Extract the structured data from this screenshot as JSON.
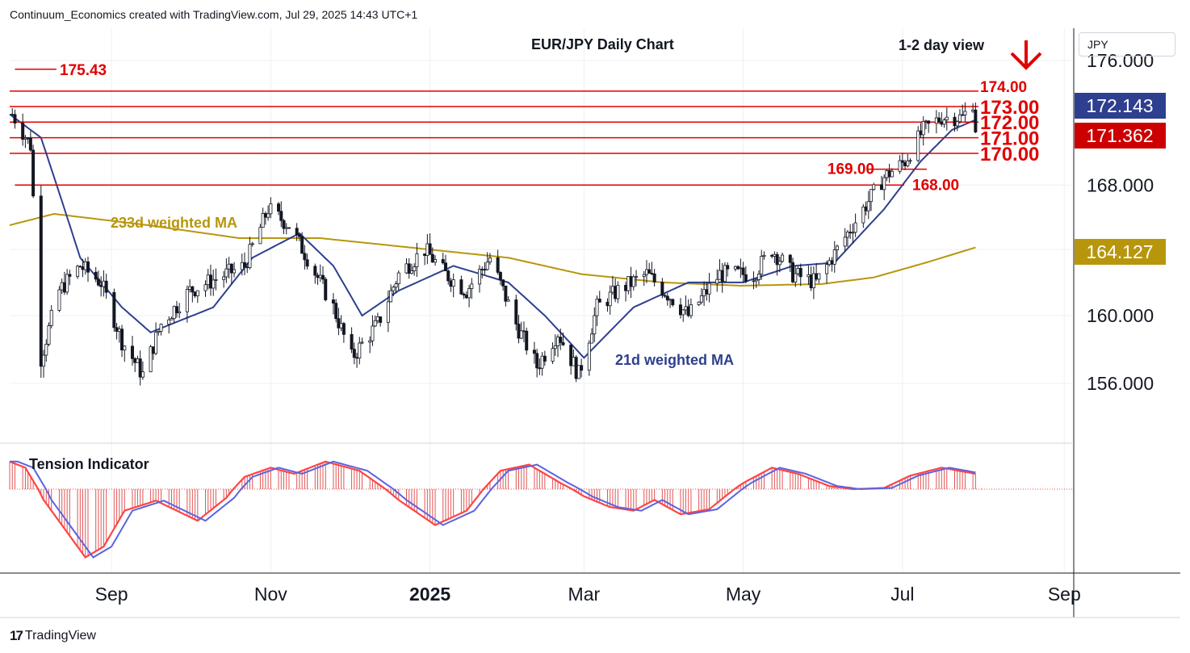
{
  "header": {
    "caption": "Continuum_Economics created with TradingView.com, Jul 29, 2025 14:43 UTC+1"
  },
  "footer": {
    "logo_icon": "tradingview-logo-icon",
    "logo_text": "TradingView"
  },
  "colors": {
    "level_lines": "#e00000",
    "ma_21": "#2e3f8f",
    "ma_233": "#b8960c",
    "candles": "#131722",
    "tension_fast": "#ff4444",
    "tension_slow": "#5b63e0",
    "badge_ma21": "#2e3f8f",
    "badge_last": "#cc0000",
    "badge_ma233": "#b8960c",
    "down_arrow": "#e00000"
  },
  "chart_data": {
    "type": "candlestick",
    "title": "EUR/JPY Daily Chart",
    "view_label": "1-2 day view",
    "direction_icon": "down-arrow-icon",
    "unit": "JPY",
    "y_ticks": [
      "176.000",
      "168.000",
      "160.000",
      "156.000"
    ],
    "y_tick_values": [
      176,
      168,
      160,
      156
    ],
    "x_ticks": [
      {
        "label": "Sep",
        "date": "2024-09-01",
        "bold": false
      },
      {
        "label": "Nov",
        "date": "2024-11-01",
        "bold": false
      },
      {
        "label": "2025",
        "date": "2025-01-01",
        "bold": true
      },
      {
        "label": "Mar",
        "date": "2025-03-01",
        "bold": false
      },
      {
        "label": "May",
        "date": "2025-05-01",
        "bold": false
      },
      {
        "label": "Jul",
        "date": "2025-07-01",
        "bold": false
      },
      {
        "label": "Sep",
        "date": "2025-09-01",
        "bold": false
      }
    ],
    "x_range": [
      "2024-07-24",
      "2025-09-04"
    ],
    "horizontal_levels": [
      {
        "value": 175.43,
        "label": "175.43",
        "start": "2024-07-26"
      },
      {
        "value": 174.0,
        "label": "174.00",
        "start": "2024-07-24"
      },
      {
        "value": 173.0,
        "label": "173.00",
        "start": "2024-07-24"
      },
      {
        "value": 172.0,
        "label": "172.00",
        "start": "2024-07-24"
      },
      {
        "value": 171.0,
        "label": "171.00",
        "start": "2024-07-24"
      },
      {
        "value": 170.0,
        "label": "170.00",
        "start": "2024-07-24"
      },
      {
        "value": 169.0,
        "label": "169.00",
        "start": "2025-06-18"
      },
      {
        "value": 168.0,
        "label": "168.00",
        "start": "2024-07-26"
      }
    ],
    "price_badges": [
      {
        "label": "172.143",
        "series": "21d weighted MA"
      },
      {
        "label": "171.362",
        "series": "last"
      },
      {
        "label": "164.127",
        "series": "233d weighted MA"
      }
    ],
    "series": [
      {
        "name": "21d weighted MA",
        "kind": "line",
        "label": "21d weighted MA"
      },
      {
        "name": "233d weighted MA",
        "kind": "line",
        "label": "233d weighted MA"
      }
    ],
    "close_anchors": [
      {
        "date": "2024-07-25",
        "close": 172.5
      },
      {
        "date": "2024-08-01",
        "close": 170.5
      },
      {
        "date": "2024-08-05",
        "close": 157.5
      },
      {
        "date": "2024-08-12",
        "close": 161.5
      },
      {
        "date": "2024-08-20",
        "close": 163.0
      },
      {
        "date": "2024-08-28",
        "close": 162.0
      },
      {
        "date": "2024-09-05",
        "close": 158.5
      },
      {
        "date": "2024-09-13",
        "close": 156.5
      },
      {
        "date": "2024-09-20",
        "close": 159.5
      },
      {
        "date": "2024-10-01",
        "close": 161.5
      },
      {
        "date": "2024-10-15",
        "close": 162.5
      },
      {
        "date": "2024-10-22",
        "close": 163.0
      },
      {
        "date": "2024-10-31",
        "close": 166.5
      },
      {
        "date": "2024-11-08",
        "close": 165.5
      },
      {
        "date": "2024-11-15",
        "close": 163.5
      },
      {
        "date": "2024-11-25",
        "close": 160.5
      },
      {
        "date": "2024-12-02",
        "close": 157.5
      },
      {
        "date": "2024-12-12",
        "close": 159.5
      },
      {
        "date": "2024-12-20",
        "close": 162.5
      },
      {
        "date": "2024-12-30",
        "close": 164.0
      },
      {
        "date": "2025-01-07",
        "close": 162.5
      },
      {
        "date": "2025-01-15",
        "close": 161.5
      },
      {
        "date": "2025-01-24",
        "close": 163.5
      },
      {
        "date": "2025-02-03",
        "close": 159.5
      },
      {
        "date": "2025-02-11",
        "close": 157.0
      },
      {
        "date": "2025-02-19",
        "close": 159.0
      },
      {
        "date": "2025-02-27",
        "close": 156.5
      },
      {
        "date": "2025-03-06",
        "close": 160.5
      },
      {
        "date": "2025-03-14",
        "close": 161.5
      },
      {
        "date": "2025-03-25",
        "close": 162.5
      },
      {
        "date": "2025-04-04",
        "close": 161.0
      },
      {
        "date": "2025-04-10",
        "close": 160.0
      },
      {
        "date": "2025-04-22",
        "close": 162.5
      },
      {
        "date": "2025-05-05",
        "close": 162.5
      },
      {
        "date": "2025-05-12",
        "close": 164.0
      },
      {
        "date": "2025-05-20",
        "close": 162.5
      },
      {
        "date": "2025-05-29",
        "close": 162.0
      },
      {
        "date": "2025-06-06",
        "close": 164.0
      },
      {
        "date": "2025-06-16",
        "close": 166.5
      },
      {
        "date": "2025-06-24",
        "close": 168.5
      },
      {
        "date": "2025-07-02",
        "close": 169.5
      },
      {
        "date": "2025-07-09",
        "close": 171.5
      },
      {
        "date": "2025-07-16",
        "close": 172.3
      },
      {
        "date": "2025-07-24",
        "close": 172.3
      },
      {
        "date": "2025-07-28",
        "close": 173.3
      },
      {
        "date": "2025-07-29",
        "close": 171.362
      }
    ],
    "ma21_anchors": [
      {
        "date": "2024-07-24",
        "value": 172.5
      },
      {
        "date": "2024-08-05",
        "value": 171.0
      },
      {
        "date": "2024-08-20",
        "value": 163.5
      },
      {
        "date": "2024-09-05",
        "value": 160.5
      },
      {
        "date": "2024-09-16",
        "value": 159.0
      },
      {
        "date": "2024-10-10",
        "value": 160.5
      },
      {
        "date": "2024-10-25",
        "value": 163.5
      },
      {
        "date": "2024-11-12",
        "value": 165.0
      },
      {
        "date": "2024-11-25",
        "value": 163.0
      },
      {
        "date": "2024-12-06",
        "value": 160.0
      },
      {
        "date": "2024-12-20",
        "value": 161.5
      },
      {
        "date": "2025-01-10",
        "value": 163.0
      },
      {
        "date": "2025-01-31",
        "value": 162.0
      },
      {
        "date": "2025-02-14",
        "value": 160.0
      },
      {
        "date": "2025-03-01",
        "value": 157.5
      },
      {
        "date": "2025-03-20",
        "value": 160.5
      },
      {
        "date": "2025-04-10",
        "value": 162.0
      },
      {
        "date": "2025-05-01",
        "value": 162.0
      },
      {
        "date": "2025-05-20",
        "value": 163.0
      },
      {
        "date": "2025-06-05",
        "value": 163.2
      },
      {
        "date": "2025-06-24",
        "value": 166.5
      },
      {
        "date": "2025-07-08",
        "value": 169.5
      },
      {
        "date": "2025-07-20",
        "value": 171.5
      },
      {
        "date": "2025-07-29",
        "value": 172.143
      }
    ],
    "ma233_anchors": [
      {
        "date": "2024-07-24",
        "value": 165.5
      },
      {
        "date": "2024-08-10",
        "value": 166.2
      },
      {
        "date": "2024-09-15",
        "value": 165.5
      },
      {
        "date": "2024-10-20",
        "value": 164.7
      },
      {
        "date": "2024-11-20",
        "value": 164.7
      },
      {
        "date": "2024-12-20",
        "value": 164.2
      },
      {
        "date": "2025-01-31",
        "value": 163.5
      },
      {
        "date": "2025-02-28",
        "value": 162.5
      },
      {
        "date": "2025-03-31",
        "value": 162.0
      },
      {
        "date": "2025-04-30",
        "value": 161.8
      },
      {
        "date": "2025-05-31",
        "value": 161.9
      },
      {
        "date": "2025-06-20",
        "value": 162.3
      },
      {
        "date": "2025-07-10",
        "value": 163.2
      },
      {
        "date": "2025-07-29",
        "value": 164.127
      }
    ],
    "indicator": {
      "name": "Tension Indicator",
      "range": [
        -1,
        0.5
      ],
      "anchors": [
        {
          "date": "2024-07-24",
          "value": 0.45
        },
        {
          "date": "2024-07-30",
          "value": 0.35
        },
        {
          "date": "2024-08-06",
          "value": -0.15
        },
        {
          "date": "2024-08-14",
          "value": -0.55
        },
        {
          "date": "2024-08-22",
          "value": -0.95
        },
        {
          "date": "2024-08-29",
          "value": -0.8
        },
        {
          "date": "2024-09-06",
          "value": -0.3
        },
        {
          "date": "2024-09-18",
          "value": -0.16
        },
        {
          "date": "2024-10-04",
          "value": -0.44
        },
        {
          "date": "2024-10-15",
          "value": -0.12
        },
        {
          "date": "2024-10-22",
          "value": 0.2
        },
        {
          "date": "2024-11-01",
          "value": 0.35
        },
        {
          "date": "2024-11-10",
          "value": 0.25
        },
        {
          "date": "2024-11-22",
          "value": 0.45
        },
        {
          "date": "2024-12-05",
          "value": 0.3
        },
        {
          "date": "2024-12-20",
          "value": -0.15
        },
        {
          "date": "2025-01-03",
          "value": -0.5
        },
        {
          "date": "2025-01-15",
          "value": -0.3
        },
        {
          "date": "2025-01-28",
          "value": 0.3
        },
        {
          "date": "2025-02-08",
          "value": 0.4
        },
        {
          "date": "2025-02-20",
          "value": 0.1
        },
        {
          "date": "2025-03-01",
          "value": -0.1
        },
        {
          "date": "2025-03-11",
          "value": -0.25
        },
        {
          "date": "2025-03-20",
          "value": -0.3
        },
        {
          "date": "2025-03-28",
          "value": -0.15
        },
        {
          "date": "2025-04-07",
          "value": -0.35
        },
        {
          "date": "2025-04-18",
          "value": -0.28
        },
        {
          "date": "2025-05-01",
          "value": 0.1
        },
        {
          "date": "2025-05-12",
          "value": 0.35
        },
        {
          "date": "2025-05-22",
          "value": 0.25
        },
        {
          "date": "2025-06-03",
          "value": 0.05
        },
        {
          "date": "2025-06-12",
          "value": 0.0
        },
        {
          "date": "2025-06-24",
          "value": 0.02
        },
        {
          "date": "2025-07-04",
          "value": 0.22
        },
        {
          "date": "2025-07-16",
          "value": 0.35
        },
        {
          "date": "2025-07-29",
          "value": 0.25
        }
      ]
    }
  }
}
